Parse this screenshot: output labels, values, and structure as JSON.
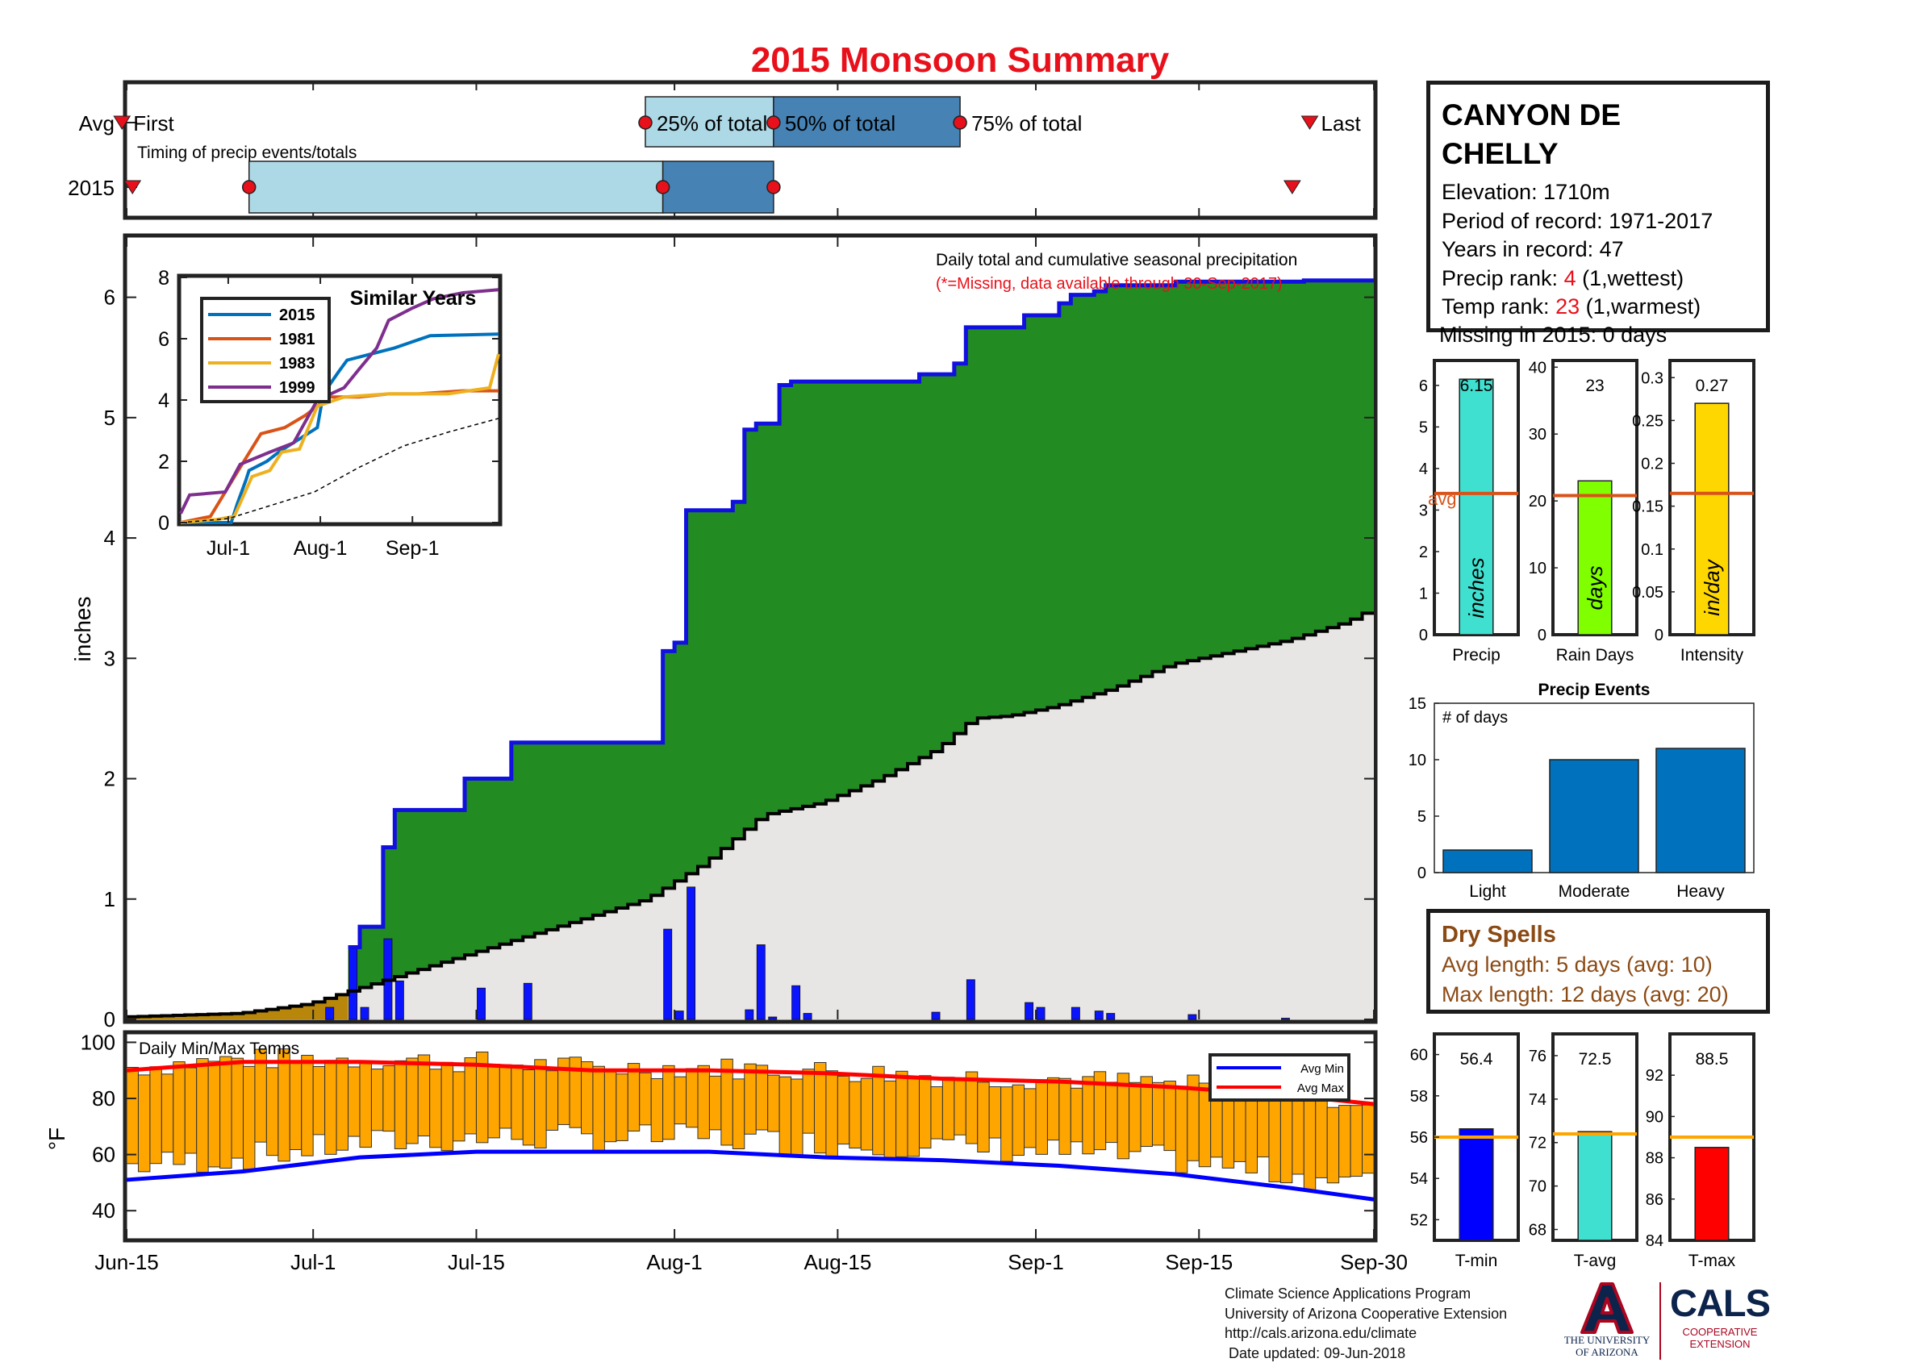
{
  "title": "2015 Monsoon Summary",
  "timing": {
    "row_labels": [
      "Avg",
      "2015"
    ],
    "caption": "Timing of precip events/totals",
    "avg_labels": {
      "first": "First",
      "p25": "25% of total",
      "p50": "50% of total",
      "p75": "75% of total",
      "last": "Last"
    },
    "avg_days": {
      "first": -0.4,
      "p25": 44.5,
      "p50": 55.5,
      "p75": 71.5,
      "last": 101.5
    },
    "y2015_days": {
      "first": 0.5,
      "p25": 15.5,
      "p50": 46.0,
      "p75": 55.5,
      "last": 100.0
    }
  },
  "main_chart": {
    "ylabel": "inches",
    "annotation": "Daily total and cumulative seasonal precipitation",
    "missing_note": "(*=Missing, data available through 30-Sep-2017)",
    "x_ticks": [
      "Jun-15",
      "Jul-1",
      "Jul-15",
      "Aug-1",
      "Aug-15",
      "Sep-1",
      "Sep-15",
      "Sep-30"
    ],
    "y_ticks": [
      "0",
      "1",
      "2",
      "3",
      "4",
      "5",
      "6"
    ],
    "colors": {
      "above_avg": "#228b22",
      "avg_fill": "#e8e6e4",
      "cum_line": "#1010e0",
      "daily_bar": "#0a14ff",
      "below_avg": "#b8860b"
    }
  },
  "chart_data": [
    {
      "type": "area",
      "title": "Daily total and cumulative seasonal precipitation",
      "ylabel": "inches",
      "ylim": [
        0,
        6.5
      ],
      "x_ticks": [
        "Jun-15",
        "Jul-1",
        "Jul-15",
        "Aug-1",
        "Aug-15",
        "Sep-1",
        "Sep-15",
        "Sep-30"
      ],
      "x_tick_days": [
        0,
        16,
        30,
        47,
        61,
        78,
        92,
        107
      ],
      "series": [
        {
          "name": "",
          "cumulative_steps": [
            [
              0,
              0
            ],
            [
              19,
              0.6
            ],
            [
              20,
              0.77
            ],
            [
              22,
              1.43
            ],
            [
              23,
              1.74
            ],
            [
              29,
              2.0
            ],
            [
              33,
              2.3
            ],
            [
              46,
              3.06
            ],
            [
              47,
              3.13
            ],
            [
              48,
              4.23
            ],
            [
              52,
              4.3
            ],
            [
              53,
              4.9
            ],
            [
              54,
              4.95
            ],
            [
              56,
              5.27
            ],
            [
              57,
              5.3
            ],
            [
              68,
              5.36
            ],
            [
              71,
              5.45
            ],
            [
              72,
              5.75
            ],
            [
              76,
              5.75
            ],
            [
              77,
              5.85
            ],
            [
              80,
              5.95
            ],
            [
              81,
              6.02
            ],
            [
              83,
              6.05
            ],
            [
              84,
              6.1
            ],
            [
              90,
              6.13
            ],
            [
              101,
              6.14
            ],
            [
              107,
              6.15
            ]
          ]
        },
        {
          "name": "",
          "average_cumulative": [
            [
              0,
              0.02
            ],
            [
              10,
              0.05
            ],
            [
              16,
              0.13
            ],
            [
              20,
              0.25
            ],
            [
              25,
              0.4
            ],
            [
              30,
              0.55
            ],
            [
              35,
              0.7
            ],
            [
              40,
              0.85
            ],
            [
              45,
              1.0
            ],
            [
              50,
              1.3
            ],
            [
              55,
              1.7
            ],
            [
              60,
              1.8
            ],
            [
              65,
              2.0
            ],
            [
              70,
              2.25
            ],
            [
              73,
              2.5
            ],
            [
              76,
              2.52
            ],
            [
              80,
              2.6
            ],
            [
              85,
              2.75
            ],
            [
              90,
              2.95
            ],
            [
              95,
              3.05
            ],
            [
              100,
              3.15
            ],
            [
              105,
              3.3
            ],
            [
              107,
              3.4
            ]
          ]
        },
        {
          "name": "",
          "daily_bars": [
            [
              17,
              0.1
            ],
            [
              19,
              0.6
            ],
            [
              20,
              0.1
            ],
            [
              22,
              0.67
            ],
            [
              23,
              0.32
            ],
            [
              30,
              0.26
            ],
            [
              34,
              0.3
            ],
            [
              46,
              0.75
            ],
            [
              47,
              0.07
            ],
            [
              48,
              1.1
            ],
            [
              53,
              0.08
            ],
            [
              54,
              0.62
            ],
            [
              55,
              0.02
            ],
            [
              57,
              0.28
            ],
            [
              58,
              0.05
            ],
            [
              69,
              0.06
            ],
            [
              72,
              0.33
            ],
            [
              77,
              0.14
            ],
            [
              78,
              0.1
            ],
            [
              81,
              0.1
            ],
            [
              83,
              0.07
            ],
            [
              84,
              0.05
            ],
            [
              91,
              0.04
            ],
            [
              99,
              0.01
            ]
          ]
        }
      ]
    },
    {
      "type": "line",
      "title": "Similar Years",
      "x_ticks": [
        "Jul-1",
        "Aug-1",
        "Sep-1"
      ],
      "y_ticks": [
        "0",
        "2",
        "4",
        "6",
        "8"
      ],
      "ylim": [
        0,
        8
      ],
      "series": [
        {
          "name": "2015",
          "color": "#0072bd",
          "points": [
            [
              0,
              0
            ],
            [
              17,
              0
            ],
            [
              19,
              0.6
            ],
            [
              22,
              1.4
            ],
            [
              23,
              1.7
            ],
            [
              29,
              2.0
            ],
            [
              33,
              2.3
            ],
            [
              46,
              3.1
            ],
            [
              48,
              4.2
            ],
            [
              53,
              4.9
            ],
            [
              56,
              5.3
            ],
            [
              72,
              5.7
            ],
            [
              84,
              6.1
            ],
            [
              107,
              6.15
            ]
          ]
        },
        {
          "name": "1981",
          "color": "#d95319",
          "points": [
            [
              0,
              0
            ],
            [
              10,
              0.2
            ],
            [
              20,
              1.8
            ],
            [
              27,
              2.9
            ],
            [
              35,
              3.1
            ],
            [
              42,
              3.5
            ],
            [
              50,
              4.1
            ],
            [
              60,
              4.1
            ],
            [
              70,
              4.2
            ],
            [
              80,
              4.2
            ],
            [
              95,
              4.3
            ],
            [
              107,
              4.3
            ]
          ]
        },
        {
          "name": "1983",
          "color": "#edb120",
          "points": [
            [
              0,
              0
            ],
            [
              12,
              0.1
            ],
            [
              18,
              0.2
            ],
            [
              24,
              1.5
            ],
            [
              30,
              1.7
            ],
            [
              34,
              2.3
            ],
            [
              40,
              2.4
            ],
            [
              46,
              3.8
            ],
            [
              55,
              4.1
            ],
            [
              70,
              4.2
            ],
            [
              90,
              4.2
            ],
            [
              104,
              4.4
            ],
            [
              107,
              5.5
            ]
          ]
        },
        {
          "name": "1999",
          "color": "#7e2f8e",
          "points": [
            [
              0,
              0.3
            ],
            [
              3,
              0.9
            ],
            [
              15,
              1.0
            ],
            [
              20,
              1.9
            ],
            [
              30,
              2.3
            ],
            [
              38,
              2.6
            ],
            [
              46,
              4.0
            ],
            [
              55,
              4.4
            ],
            [
              60,
              5.0
            ],
            [
              66,
              5.7
            ],
            [
              70,
              6.6
            ],
            [
              78,
              7.0
            ],
            [
              85,
              7.3
            ],
            [
              95,
              7.5
            ],
            [
              107,
              7.6
            ]
          ]
        },
        {
          "name": "",
          "color": "#000000",
          "dashed": true,
          "points": [
            [
              0,
              0
            ],
            [
              16,
              0.13
            ],
            [
              30,
              0.55
            ],
            [
              45,
              1.0
            ],
            [
              60,
              1.8
            ],
            [
              75,
              2.5
            ],
            [
              90,
              2.95
            ],
            [
              107,
              3.4
            ]
          ]
        }
      ]
    },
    {
      "type": "bar",
      "title": "Daily Min/Max Temps",
      "ylabel": "°F",
      "ylim": [
        30,
        103
      ],
      "series": [
        {
          "name": "Avg Min",
          "color": "#0000ff",
          "points": [
            [
              0,
              51
            ],
            [
              10,
              54
            ],
            [
              20,
              59
            ],
            [
              30,
              61
            ],
            [
              40,
              61
            ],
            [
              50,
              61
            ],
            [
              60,
              59
            ],
            [
              70,
              58
            ],
            [
              80,
              56
            ],
            [
              90,
              53
            ],
            [
              100,
              48
            ],
            [
              107,
              44
            ]
          ]
        },
        {
          "name": "Avg Max",
          "color": "#ff0000",
          "points": [
            [
              0,
              90
            ],
            [
              10,
              93
            ],
            [
              20,
              93
            ],
            [
              30,
              92
            ],
            [
              40,
              90
            ],
            [
              50,
              90
            ],
            [
              60,
              89
            ],
            [
              70,
              87
            ],
            [
              80,
              86
            ],
            [
              90,
              84
            ],
            [
              100,
              81
            ],
            [
              107,
              78
            ]
          ]
        }
      ]
    },
    {
      "type": "bar",
      "categories": [
        "Precip"
      ],
      "values": [
        6.15
      ],
      "avg": 3.4,
      "ylim": [
        0,
        6.6
      ],
      "label": "inches",
      "color": "#40e0d0"
    },
    {
      "type": "bar",
      "categories": [
        "Rain Days"
      ],
      "values": [
        23
      ],
      "avg": 20.8,
      "ylim": [
        0,
        41
      ],
      "label": "days",
      "color": "#7fff00"
    },
    {
      "type": "bar",
      "categories": [
        "Intensity"
      ],
      "values": [
        0.27
      ],
      "avg": 0.165,
      "ylim": [
        0,
        0.32
      ],
      "label": "in/day",
      "color": "#ffd700"
    },
    {
      "type": "bar",
      "title": "Precip Events",
      "ylabel": "# of days",
      "categories": [
        "Light",
        "Moderate",
        "Heavy"
      ],
      "values": [
        2,
        10,
        11
      ],
      "ylim": [
        0,
        15
      ],
      "color": "#0072bd"
    },
    {
      "type": "bar",
      "categories": [
        "T-min"
      ],
      "values": [
        56.4
      ],
      "avg": 56.0,
      "ylim": [
        51,
        61
      ],
      "color": "#0000ff"
    },
    {
      "type": "bar",
      "categories": [
        "T-avg"
      ],
      "values": [
        72.5
      ],
      "avg": 72.4,
      "ylim": [
        67.5,
        77
      ],
      "color": "#40e0d0"
    },
    {
      "type": "bar",
      "categories": [
        "T-max"
      ],
      "values": [
        88.5
      ],
      "avg": 89.0,
      "ylim": [
        84,
        94
      ],
      "color": "#ff0000"
    }
  ],
  "temps": {
    "caption": "Daily Min/Max Temps",
    "ylabel": "°F",
    "y_ticks": [
      "40",
      "60",
      "80",
      "100"
    ],
    "legend": [
      "Avg Min",
      "Avg Max"
    ]
  },
  "station": {
    "name_line1": "CANYON DE",
    "name_line2": "CHELLY",
    "elevation": "Elevation: 1710m",
    "period": "Period of record: 1971-2017",
    "years": "Years in record: 47",
    "precip_rank_label": "Precip rank: ",
    "precip_rank_value": "4",
    "precip_rank_suffix": " (1,wettest)",
    "temp_rank_label": "Temp rank: ",
    "temp_rank_value": "23",
    "temp_rank_suffix": " (1,warmest)",
    "missing": "Missing in 2015: 0 days"
  },
  "summary_bars": {
    "precip": {
      "value_label": "6.15",
      "xlabel": "Precip",
      "unit": "inches",
      "y_ticks": [
        "0",
        "1",
        "2",
        "3",
        "4",
        "5",
        "6"
      ],
      "avg_label": "avg"
    },
    "raindays": {
      "value_label": "23",
      "xlabel": "Rain Days",
      "unit": "days",
      "y_ticks": [
        "0",
        "10",
        "20",
        "30",
        "40"
      ]
    },
    "intensity": {
      "value_label": "0.27",
      "xlabel": "Intensity",
      "unit": "in/day",
      "y_ticks": [
        "0",
        "0.05",
        "0.1",
        "0.15",
        "0.2",
        "0.25",
        "0.3"
      ]
    }
  },
  "events": {
    "title": "Precip Events",
    "ylabel": "# of days",
    "y_ticks": [
      "0",
      "5",
      "10",
      "15"
    ],
    "categories": [
      "Light",
      "Moderate",
      "Heavy"
    ]
  },
  "dry_spells": {
    "title": "Dry Spells",
    "avg_length": "Avg length: 5 days (avg: 10)",
    "max_length": "Max length: 12 days (avg: 20)"
  },
  "temp_bars": {
    "tmin": {
      "value_label": "56.4",
      "xlabel": "T-min",
      "y_ticks": [
        "52",
        "54",
        "56",
        "58",
        "60"
      ]
    },
    "tavg": {
      "value_label": "72.5",
      "xlabel": "T-avg",
      "y_ticks": [
        "68",
        "70",
        "72",
        "74",
        "76"
      ]
    },
    "tmax": {
      "value_label": "88.5",
      "xlabel": "T-max",
      "y_ticks": [
        "84",
        "86",
        "88",
        "90",
        "92"
      ]
    }
  },
  "credits": {
    "line1": "Climate Science Applications Program",
    "line2": "University of Arizona Cooperative Extension",
    "line3": "http://cals.arizona.edu/climate",
    "line4": " Date updated: 09-Jun-2018"
  },
  "logos": {
    "ua_line1": "THE UNIVERSITY",
    "ua_line2": "OF ARIZONA",
    "cals": "CALS",
    "cals_line1": "COOPERATIVE",
    "cals_line2": "EXTENSION"
  }
}
